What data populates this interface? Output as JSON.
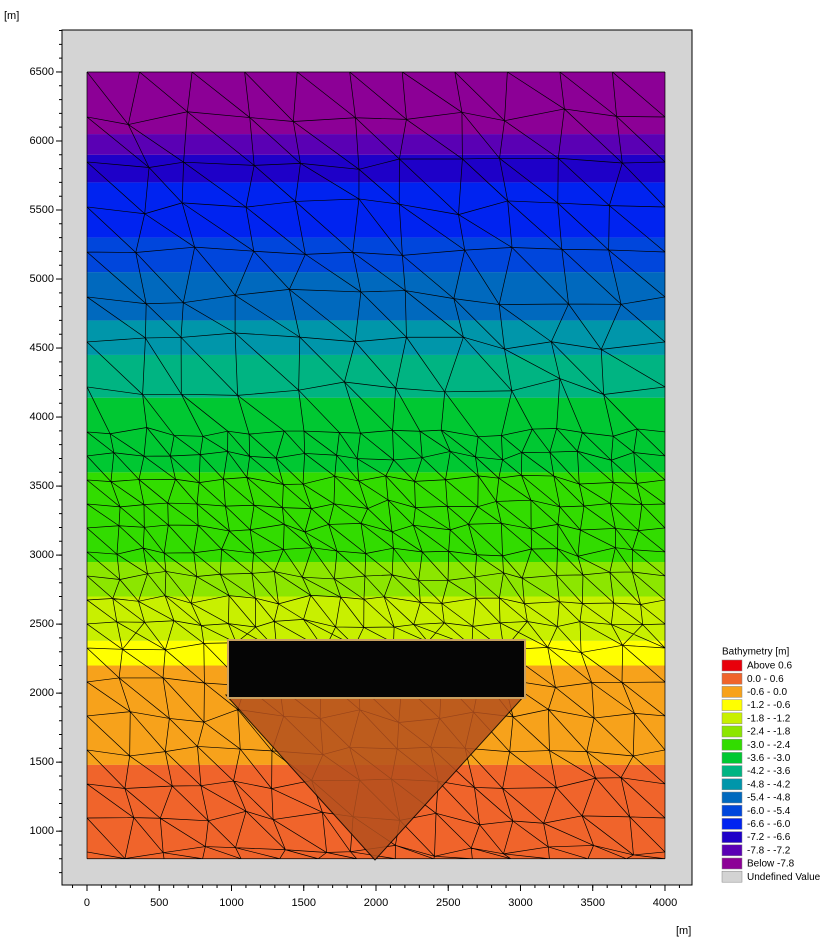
{
  "chart_data": {
    "type": "contour",
    "y_label": "[m]",
    "x_label": "[m]",
    "legend_title": "Bathymetry [m]",
    "legend": "right",
    "xlim": [
      -173,
      4187
    ],
    "ylim": [
      610,
      6804
    ],
    "xticks": [
      0,
      500,
      1000,
      1500,
      2000,
      2500,
      3000,
      3500,
      4000
    ],
    "yticks": [
      1000,
      1500,
      2000,
      2500,
      3000,
      3500,
      4000,
      4500,
      5000,
      5500,
      6000,
      6500
    ],
    "series": [
      {
        "name": "Above 0.6",
        "color": "#e8000b"
      },
      {
        "name": "0.0 - 0.6",
        "color": "#f0642b"
      },
      {
        "name": "-0.6 - 0.0",
        "color": "#f7a21b"
      },
      {
        "name": "-1.2 - -0.6",
        "color": "#ffff00"
      },
      {
        "name": "-1.8 - -1.2",
        "color": "#c8f000"
      },
      {
        "name": "-2.4 - -1.8",
        "color": "#8ce600"
      },
      {
        "name": "-3.0 - -2.4",
        "color": "#32dc00"
      },
      {
        "name": "-3.6 - -3.0",
        "color": "#00c832"
      },
      {
        "name": "-4.2 - -3.6",
        "color": "#00b482"
      },
      {
        "name": "-4.8 - -4.2",
        "color": "#0096aa"
      },
      {
        "name": "-5.4 - -4.8",
        "color": "#0069be"
      },
      {
        "name": "-6.0 - -5.4",
        "color": "#0046dc"
      },
      {
        "name": "-6.6 - -6.0",
        "color": "#0023f0"
      },
      {
        "name": "-7.2 - -6.6",
        "color": "#1e00c8"
      },
      {
        "name": "-7.8 - -7.2",
        "color": "#5a00b4"
      },
      {
        "name": "Below -7.8",
        "color": "#8c0096"
      },
      {
        "name": "Undefined Value",
        "color": "#d3d3d3"
      }
    ],
    "bands": [
      {
        "from": 800,
        "to": 1480,
        "color": "#f0642b"
      },
      {
        "from": 1480,
        "to": 2200,
        "color": "#f7a21b"
      },
      {
        "from": 2200,
        "to": 2380,
        "color": "#ffff00"
      },
      {
        "from": 2380,
        "to": 2700,
        "color": "#c8f000"
      },
      {
        "from": 2700,
        "to": 2950,
        "color": "#8ce600"
      },
      {
        "from": 2950,
        "to": 3600,
        "color": "#32dc00"
      },
      {
        "from": 3600,
        "to": 4140,
        "color": "#00c832"
      },
      {
        "from": 4140,
        "to": 4450,
        "color": "#00b482"
      },
      {
        "from": 4450,
        "to": 4700,
        "color": "#0096aa"
      },
      {
        "from": 4700,
        "to": 5050,
        "color": "#0069be"
      },
      {
        "from": 5050,
        "to": 5300,
        "color": "#0046dc"
      },
      {
        "from": 5300,
        "to": 5700,
        "color": "#0023f0"
      },
      {
        "from": 5700,
        "to": 5900,
        "color": "#1e00c8"
      },
      {
        "from": 5900,
        "to": 6050,
        "color": "#5a00b4"
      },
      {
        "from": 6050,
        "to": 6500,
        "color": "#8c0096"
      }
    ]
  }
}
